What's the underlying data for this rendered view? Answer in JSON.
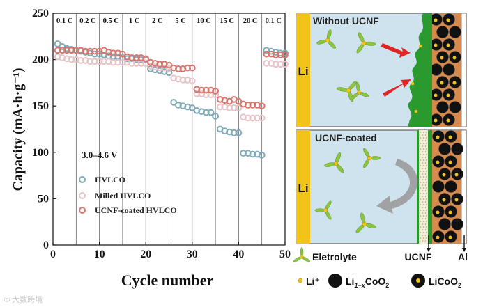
{
  "chart_data": {
    "type": "scatter",
    "xlabel": "Cycle number",
    "ylabel": "Capacity (mA·h·g⁻¹)",
    "xlim": [
      0,
      50
    ],
    "ylim": [
      0,
      250
    ],
    "xticks": [
      0,
      10,
      20,
      30,
      40,
      50
    ],
    "yticks": [
      0,
      50,
      100,
      150,
      200,
      250
    ],
    "voltage_label": "3.0–4.6 V",
    "rate_labels": [
      "0.1 C",
      "0.2 C",
      "0.5 C",
      "1 C",
      "2 C",
      "5 C",
      "10 C",
      "15 C",
      "20 C",
      "0.1 C"
    ],
    "segment_boundaries": [
      5,
      10,
      15,
      20,
      25,
      30,
      35,
      40,
      45
    ],
    "series": [
      {
        "name": "HVLCO",
        "color": "#7faab8",
        "x": [
          1,
          2,
          3,
          4,
          5,
          6,
          7,
          8,
          9,
          10,
          11,
          12,
          13,
          14,
          15,
          16,
          17,
          18,
          19,
          20,
          21,
          22,
          23,
          24,
          25,
          26,
          27,
          28,
          29,
          30,
          31,
          32,
          33,
          34,
          35,
          36,
          37,
          38,
          39,
          40,
          41,
          42,
          43,
          44,
          45,
          46,
          47,
          48,
          49,
          50
        ],
        "values": [
          217,
          214,
          212,
          211,
          210,
          209,
          208,
          207,
          206,
          206,
          205,
          204,
          203,
          203,
          202,
          201,
          201,
          200,
          200,
          200,
          190,
          189,
          188,
          187,
          186,
          154,
          151,
          150,
          149,
          148,
          145,
          144,
          143,
          143,
          139,
          125,
          123,
          122,
          121,
          121,
          99,
          99,
          98,
          98,
          97,
          210,
          209,
          208,
          207,
          207
        ]
      },
      {
        "name": "Milled HVLCO",
        "color": "#e6c4c8",
        "x": [
          1,
          2,
          3,
          4,
          5,
          6,
          7,
          8,
          9,
          10,
          11,
          12,
          13,
          14,
          15,
          16,
          17,
          18,
          19,
          20,
          21,
          22,
          23,
          24,
          25,
          26,
          27,
          28,
          29,
          30,
          31,
          32,
          33,
          34,
          35,
          36,
          37,
          38,
          39,
          40,
          41,
          42,
          43,
          44,
          45,
          46,
          47,
          48,
          49,
          50
        ],
        "values": [
          203,
          202,
          201,
          200,
          200,
          199,
          199,
          198,
          198,
          198,
          198,
          198,
          197,
          197,
          197,
          197,
          196,
          196,
          196,
          196,
          193,
          192,
          191,
          191,
          190,
          180,
          179,
          178,
          178,
          177,
          163,
          163,
          162,
          162,
          162,
          149,
          149,
          148,
          148,
          148,
          138,
          137,
          137,
          137,
          137,
          196,
          196,
          195,
          195,
          195
        ]
      },
      {
        "name": "UCNF-coated HVLCO",
        "color": "#d9756d",
        "x": [
          1,
          2,
          3,
          4,
          5,
          6,
          7,
          8,
          9,
          10,
          11,
          12,
          13,
          14,
          15,
          16,
          17,
          18,
          19,
          20,
          21,
          22,
          23,
          24,
          25,
          26,
          27,
          28,
          29,
          30,
          31,
          32,
          33,
          34,
          35,
          36,
          37,
          38,
          39,
          40,
          41,
          42,
          43,
          44,
          45,
          46,
          47,
          48,
          49,
          50
        ],
        "values": [
          210,
          210,
          210,
          210,
          210,
          210,
          209,
          209,
          209,
          209,
          210,
          208,
          207,
          207,
          206,
          203,
          202,
          202,
          202,
          201,
          197,
          196,
          195,
          195,
          194,
          191,
          190,
          190,
          191,
          191,
          168,
          167,
          167,
          167,
          166,
          157,
          156,
          155,
          157,
          155,
          152,
          151,
          151,
          151,
          150,
          206,
          206,
          205,
          205,
          205
        ]
      }
    ]
  },
  "schematic": {
    "top_title": "Without UCNF",
    "bottom_title": "UCNF-coated",
    "li_label": "Li",
    "legend_electrolyte": "Eletrolyte",
    "legend_ucnf": "UCNF",
    "legend_al": "Al",
    "legend_li_ion": "Li⁺",
    "legend_li1x_prefix": "Li",
    "legend_li1x_sub": "1−x",
    "legend_li1x_suffix": "CoO",
    "legend_li1x_sub2": "2",
    "legend_licoo2_prefix": "LiCoO",
    "legend_licoo2_sub": "2",
    "colors": {
      "li_metal": "#f2c418",
      "electrolyte_bg": "#cfe3ee",
      "cathode_bg": "#d88a4d",
      "ucnf_green": "#2a9a2e",
      "arrow_red": "#e02424"
    }
  },
  "watermark": "© 大数跨境"
}
